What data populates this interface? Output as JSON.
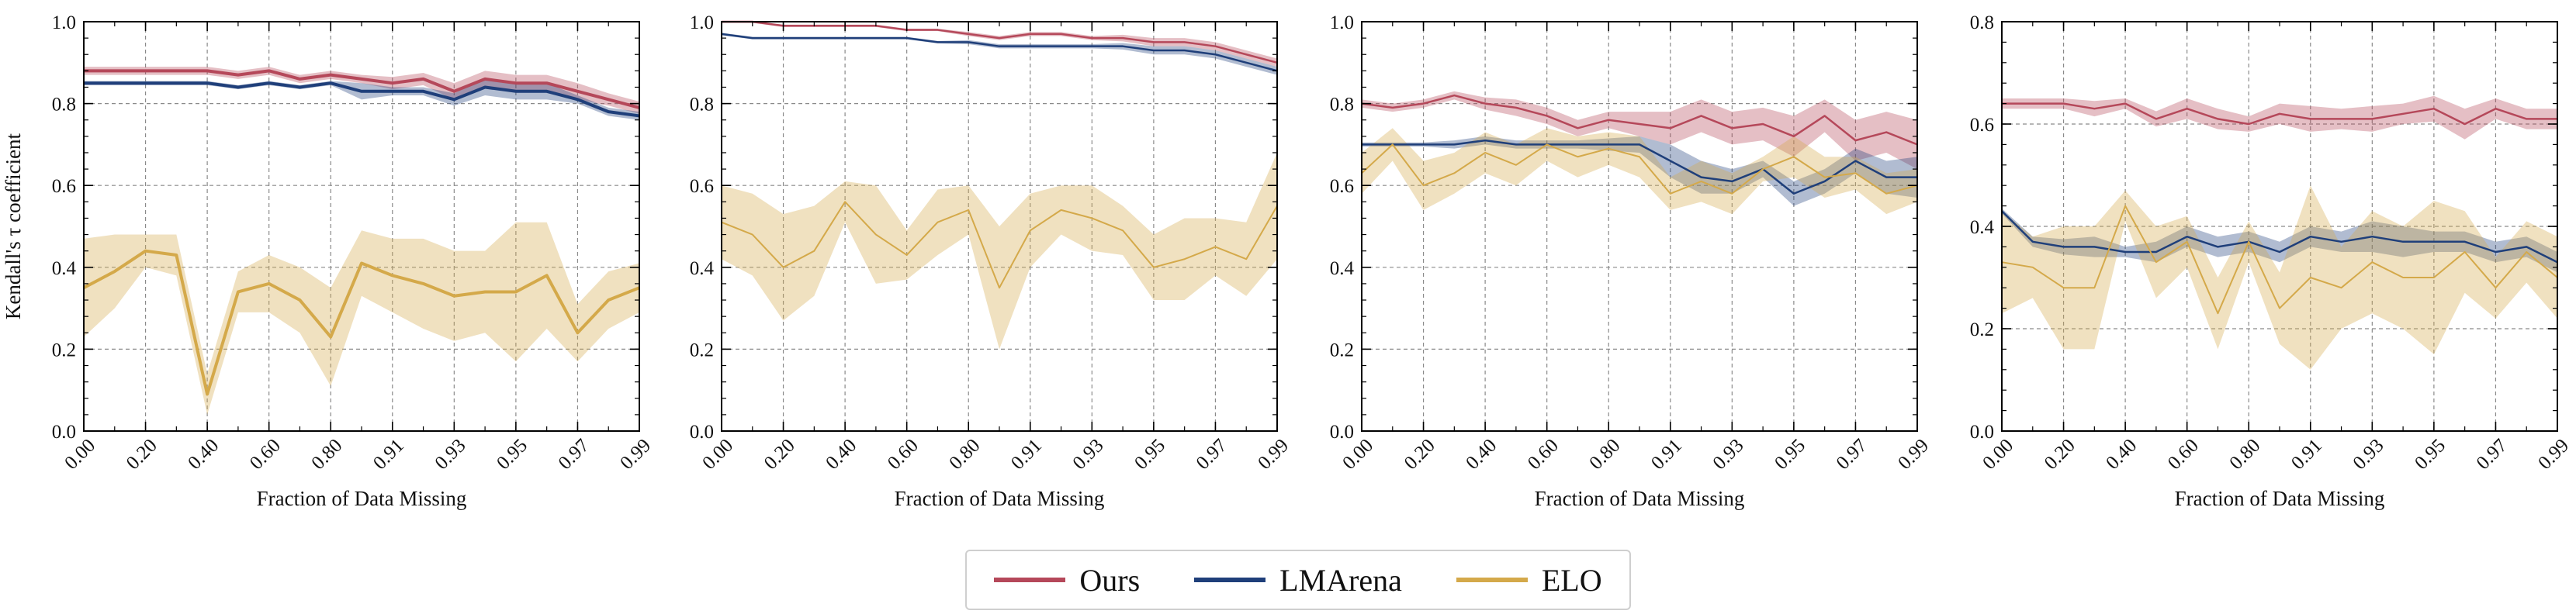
{
  "colors": {
    "ours": "#b5485a",
    "lmarena": "#1f3f7a",
    "elo": "#d4a94a"
  },
  "legend": [
    {
      "key": "ours",
      "label": "Ours"
    },
    {
      "key": "lmarena",
      "label": "LMArena"
    },
    {
      "key": "elo",
      "label": "ELO"
    }
  ],
  "chart_data": [
    {
      "type": "line",
      "title": "",
      "xlabel": "Fraction of Data Missing",
      "ylabel": "Kendall's τ coefficient",
      "ylim": [
        0,
        1.0
      ],
      "yticks": [
        0.0,
        0.2,
        0.4,
        0.6,
        0.8,
        1.0
      ],
      "ytick_labels": [
        "0.0",
        "0.2",
        "0.4",
        "0.6",
        "0.8",
        "1.0"
      ],
      "categories": [
        "0.00",
        "0.10",
        "0.20",
        "0.30",
        "0.40",
        "0.50",
        "0.60",
        "0.70",
        "0.80",
        "0.90",
        "0.91",
        "0.92",
        "0.93",
        "0.94",
        "0.95",
        "0.96",
        "0.97",
        "0.98",
        "0.99"
      ],
      "xtick_labels": [
        "0.00",
        "0.20",
        "0.40",
        "0.60",
        "0.80",
        "0.91",
        "0.93",
        "0.95",
        "0.97",
        "0.99"
      ],
      "grid": true,
      "series": [
        {
          "name": "Ours",
          "color_key": "ours",
          "width": 4,
          "values": [
            0.88,
            0.88,
            0.88,
            0.88,
            0.88,
            0.87,
            0.88,
            0.86,
            0.87,
            0.86,
            0.85,
            0.86,
            0.83,
            0.86,
            0.85,
            0.85,
            0.83,
            0.81,
            0.79
          ],
          "band": [
            0.01,
            0.01,
            0.01,
            0.01,
            0.01,
            0.01,
            0.01,
            0.01,
            0.01,
            0.01,
            0.015,
            0.015,
            0.02,
            0.02,
            0.02,
            0.02,
            0.02,
            0.015,
            0.015
          ]
        },
        {
          "name": "LMArena",
          "color_key": "lmarena",
          "width": 4,
          "values": [
            0.85,
            0.85,
            0.85,
            0.85,
            0.85,
            0.84,
            0.85,
            0.84,
            0.85,
            0.83,
            0.83,
            0.83,
            0.81,
            0.84,
            0.83,
            0.83,
            0.81,
            0.78,
            0.77
          ],
          "band": [
            0.005,
            0.005,
            0.005,
            0.005,
            0.005,
            0.005,
            0.005,
            0.005,
            0.005,
            0.02,
            0.01,
            0.01,
            0.015,
            0.02,
            0.02,
            0.02,
            0.01,
            0.01,
            0.01
          ]
        },
        {
          "name": "ELO",
          "color_key": "elo",
          "width": 4,
          "values": [
            0.35,
            0.39,
            0.44,
            0.43,
            0.09,
            0.34,
            0.36,
            0.32,
            0.23,
            0.41,
            0.38,
            0.36,
            0.33,
            0.34,
            0.34,
            0.38,
            0.24,
            0.32,
            0.35
          ],
          "band": [
            0.12,
            0.09,
            0.04,
            0.05,
            0.05,
            0.05,
            0.07,
            0.08,
            0.12,
            0.08,
            0.09,
            0.11,
            0.11,
            0.1,
            0.17,
            0.13,
            0.07,
            0.07,
            0.06
          ]
        }
      ]
    },
    {
      "type": "line",
      "title": "",
      "xlabel": "Fraction of Data Missing",
      "ylabel": "",
      "ylim": [
        0,
        1.0
      ],
      "yticks": [
        0.0,
        0.2,
        0.4,
        0.6,
        0.8,
        1.0
      ],
      "ytick_labels": [
        "0.0",
        "0.2",
        "0.4",
        "0.6",
        "0.8",
        "1.0"
      ],
      "categories": [
        "0.00",
        "0.10",
        "0.20",
        "0.30",
        "0.40",
        "0.50",
        "0.60",
        "0.70",
        "0.80",
        "0.90",
        "0.91",
        "0.92",
        "0.93",
        "0.94",
        "0.95",
        "0.96",
        "0.97",
        "0.98",
        "0.99"
      ],
      "xtick_labels": [
        "0.00",
        "0.20",
        "0.40",
        "0.60",
        "0.80",
        "0.91",
        "0.93",
        "0.95",
        "0.97",
        "0.99"
      ],
      "grid": true,
      "series": [
        {
          "name": "Ours",
          "color_key": "ours",
          "width": 2.5,
          "values": [
            1.0,
            1.0,
            0.99,
            0.99,
            0.99,
            0.99,
            0.98,
            0.98,
            0.97,
            0.96,
            0.97,
            0.97,
            0.96,
            0.96,
            0.95,
            0.95,
            0.94,
            0.92,
            0.9
          ],
          "band": [
            0.003,
            0.003,
            0.003,
            0.003,
            0.003,
            0.003,
            0.003,
            0.003,
            0.005,
            0.005,
            0.005,
            0.005,
            0.005,
            0.008,
            0.01,
            0.01,
            0.01,
            0.01,
            0.01
          ]
        },
        {
          "name": "LMArena",
          "color_key": "lmarena",
          "width": 2.5,
          "values": [
            0.97,
            0.96,
            0.96,
            0.96,
            0.96,
            0.96,
            0.96,
            0.95,
            0.95,
            0.94,
            0.94,
            0.94,
            0.94,
            0.94,
            0.93,
            0.93,
            0.92,
            0.9,
            0.88
          ],
          "band": [
            0.003,
            0.003,
            0.003,
            0.003,
            0.003,
            0.003,
            0.003,
            0.003,
            0.005,
            0.005,
            0.005,
            0.005,
            0.005,
            0.008,
            0.01,
            0.01,
            0.01,
            0.01,
            0.01
          ]
        },
        {
          "name": "ELO",
          "color_key": "elo",
          "width": 2,
          "values": [
            0.51,
            0.48,
            0.4,
            0.44,
            0.56,
            0.48,
            0.43,
            0.51,
            0.54,
            0.35,
            0.49,
            0.54,
            0.52,
            0.49,
            0.4,
            0.42,
            0.45,
            0.42,
            0.55
          ],
          "band": [
            0.09,
            0.1,
            0.13,
            0.11,
            0.05,
            0.12,
            0.06,
            0.08,
            0.06,
            0.15,
            0.09,
            0.06,
            0.08,
            0.06,
            0.08,
            0.1,
            0.07,
            0.09,
            0.13
          ]
        }
      ]
    },
    {
      "type": "line",
      "title": "",
      "xlabel": "Fraction of Data Missing",
      "ylabel": "",
      "ylim": [
        0,
        1.0
      ],
      "yticks": [
        0.0,
        0.2,
        0.4,
        0.6,
        0.8,
        1.0
      ],
      "ytick_labels": [
        "0.0",
        "0.2",
        "0.4",
        "0.6",
        "0.8",
        "1.0"
      ],
      "categories": [
        "0.00",
        "0.10",
        "0.20",
        "0.30",
        "0.40",
        "0.50",
        "0.60",
        "0.70",
        "0.80",
        "0.90",
        "0.91",
        "0.92",
        "0.93",
        "0.94",
        "0.95",
        "0.96",
        "0.97",
        "0.98",
        "0.99"
      ],
      "xtick_labels": [
        "0.00",
        "0.20",
        "0.40",
        "0.60",
        "0.80",
        "0.91",
        "0.93",
        "0.95",
        "0.97",
        "0.99"
      ],
      "grid": true,
      "series": [
        {
          "name": "Ours",
          "color_key": "ours",
          "width": 2.5,
          "values": [
            0.8,
            0.79,
            0.8,
            0.82,
            0.8,
            0.79,
            0.77,
            0.74,
            0.76,
            0.75,
            0.74,
            0.77,
            0.74,
            0.75,
            0.72,
            0.77,
            0.71,
            0.73,
            0.7
          ],
          "band": [
            0.01,
            0.01,
            0.01,
            0.01,
            0.015,
            0.02,
            0.02,
            0.02,
            0.02,
            0.03,
            0.04,
            0.04,
            0.04,
            0.04,
            0.05,
            0.04,
            0.05,
            0.05,
            0.06
          ]
        },
        {
          "name": "LMArena",
          "color_key": "lmarena",
          "width": 2.5,
          "values": [
            0.7,
            0.7,
            0.7,
            0.7,
            0.71,
            0.7,
            0.7,
            0.7,
            0.7,
            0.7,
            0.66,
            0.62,
            0.61,
            0.64,
            0.58,
            0.61,
            0.66,
            0.62,
            0.62
          ],
          "band": [
            0.005,
            0.005,
            0.005,
            0.01,
            0.01,
            0.01,
            0.01,
            0.01,
            0.015,
            0.02,
            0.04,
            0.04,
            0.03,
            0.02,
            0.03,
            0.03,
            0.03,
            0.04,
            0.05
          ]
        },
        {
          "name": "ELO",
          "color_key": "elo",
          "width": 2,
          "values": [
            0.63,
            0.7,
            0.6,
            0.63,
            0.68,
            0.65,
            0.7,
            0.67,
            0.69,
            0.67,
            0.58,
            0.61,
            0.58,
            0.64,
            0.67,
            0.62,
            0.63,
            0.58,
            0.6
          ],
          "band": [
            0.05,
            0.04,
            0.06,
            0.05,
            0.05,
            0.05,
            0.04,
            0.05,
            0.04,
            0.05,
            0.04,
            0.05,
            0.05,
            0.03,
            0.05,
            0.05,
            0.04,
            0.05,
            0.04
          ]
        }
      ]
    },
    {
      "type": "line",
      "title": "",
      "xlabel": "Fraction of Data Missing",
      "ylabel": "",
      "ylim": [
        0,
        0.8
      ],
      "yticks": [
        0.0,
        0.2,
        0.4,
        0.6,
        0.8
      ],
      "ytick_labels": [
        "0.0",
        "0.2",
        "0.4",
        "0.6",
        "0.8"
      ],
      "categories": [
        "0.00",
        "0.10",
        "0.20",
        "0.30",
        "0.40",
        "0.50",
        "0.60",
        "0.70",
        "0.80",
        "0.90",
        "0.91",
        "0.92",
        "0.93",
        "0.94",
        "0.95",
        "0.96",
        "0.97",
        "0.98",
        "0.99"
      ],
      "xtick_labels": [
        "0.00",
        "0.20",
        "0.40",
        "0.60",
        "0.80",
        "0.91",
        "0.93",
        "0.95",
        "0.97",
        "0.99"
      ],
      "grid": true,
      "series": [
        {
          "name": "Ours",
          "color_key": "ours",
          "width": 2.5,
          "values": [
            0.64,
            0.64,
            0.64,
            0.63,
            0.64,
            0.61,
            0.63,
            0.61,
            0.6,
            0.62,
            0.61,
            0.61,
            0.61,
            0.62,
            0.63,
            0.6,
            0.63,
            0.61,
            0.61
          ],
          "band": [
            0.01,
            0.01,
            0.01,
            0.015,
            0.01,
            0.015,
            0.02,
            0.02,
            0.015,
            0.02,
            0.025,
            0.02,
            0.025,
            0.02,
            0.025,
            0.03,
            0.02,
            0.02,
            0.02
          ]
        },
        {
          "name": "LMArena",
          "color_key": "lmarena",
          "width": 2.5,
          "values": [
            0.43,
            0.37,
            0.36,
            0.36,
            0.35,
            0.35,
            0.38,
            0.36,
            0.37,
            0.35,
            0.38,
            0.37,
            0.38,
            0.37,
            0.37,
            0.37,
            0.35,
            0.36,
            0.33
          ],
          "band": [
            0.005,
            0.01,
            0.015,
            0.02,
            0.01,
            0.02,
            0.02,
            0.02,
            0.02,
            0.02,
            0.02,
            0.02,
            0.03,
            0.03,
            0.02,
            0.02,
            0.02,
            0.02,
            0.02
          ]
        },
        {
          "name": "ELO",
          "color_key": "elo",
          "width": 2,
          "values": [
            0.33,
            0.32,
            0.28,
            0.28,
            0.44,
            0.33,
            0.37,
            0.23,
            0.37,
            0.24,
            0.3,
            0.28,
            0.33,
            0.3,
            0.3,
            0.35,
            0.28,
            0.35,
            0.3
          ],
          "band": [
            0.1,
            0.06,
            0.12,
            0.12,
            0.03,
            0.07,
            0.05,
            0.07,
            0.04,
            0.07,
            0.18,
            0.08,
            0.1,
            0.1,
            0.15,
            0.08,
            0.06,
            0.06,
            0.08
          ]
        }
      ]
    }
  ]
}
